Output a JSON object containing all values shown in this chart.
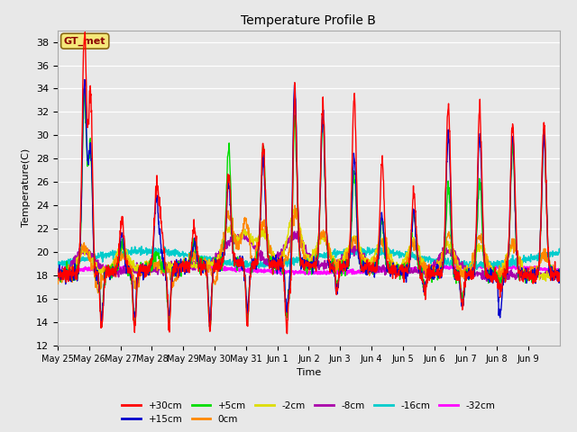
{
  "title": "Temperature Profile B",
  "xlabel": "Time",
  "ylabel": "Temperature(C)",
  "ylim": [
    12,
    39
  ],
  "yticks": [
    12,
    14,
    16,
    18,
    20,
    22,
    24,
    26,
    28,
    30,
    32,
    34,
    36,
    38
  ],
  "legend_label": "GT_met",
  "series": {
    "+30cm": {
      "color": "#ff0000",
      "lw": 1.0
    },
    "+15cm": {
      "color": "#0000cc",
      "lw": 1.0
    },
    "+5cm": {
      "color": "#00dd00",
      "lw": 1.0
    },
    "0cm": {
      "color": "#ff8800",
      "lw": 1.0
    },
    "-2cm": {
      "color": "#dddd00",
      "lw": 1.0
    },
    "-8cm": {
      "color": "#aa00aa",
      "lw": 1.2
    },
    "-16cm": {
      "color": "#00cccc",
      "lw": 1.2
    },
    "-32cm": {
      "color": "#ff00ff",
      "lw": 1.5
    }
  },
  "xtick_labels": [
    "May 25",
    "May 26",
    "May 27",
    "May 28",
    "May 29",
    "May 30",
    "May 31",
    "Jun 1",
    "Jun 2",
    "Jun 3",
    "Jun 4",
    "Jun 5",
    "Jun 6",
    "Jun 7",
    "Jun 8",
    "Jun 9"
  ],
  "background_color": "#e8e8e8",
  "plot_bg": "#e8e8e8"
}
